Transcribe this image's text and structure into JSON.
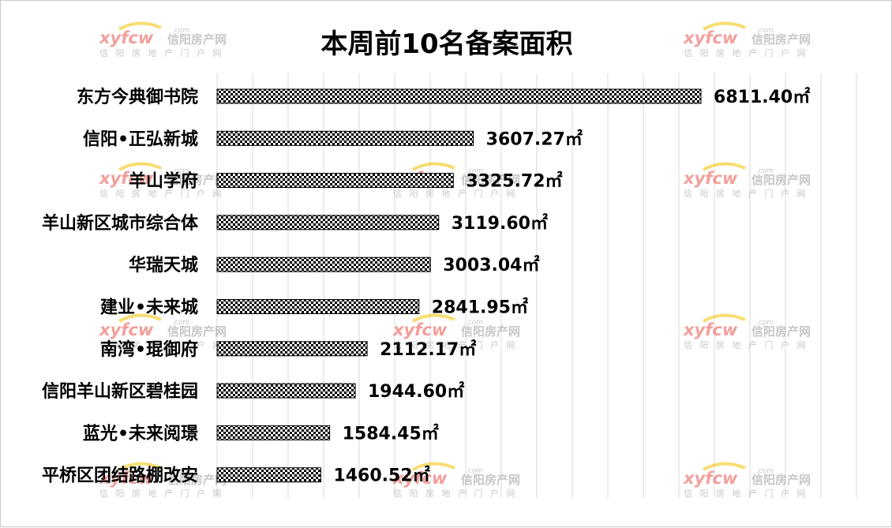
{
  "chart_data": {
    "type": "bar",
    "orientation": "horizontal",
    "title": "本周前10名备案面积",
    "categories": [
      "东方今典御书院",
      "信阳•正弘新城",
      "羊山学府",
      "羊山新区城市综合体",
      "华瑞天城",
      "建业•未来城",
      "南湾•琨御府",
      "信阳羊山新区碧桂园",
      "蓝光•未来阅璟",
      "平桥区团结路棚改安"
    ],
    "values": [
      6811.4,
      3607.27,
      3325.72,
      3119.6,
      3003.04,
      2841.95,
      2112.17,
      1944.6,
      1584.45,
      1460.52
    ],
    "value_labels": [
      "6811.40㎡",
      "3607.27㎡",
      "3325.72㎡",
      "3119.60㎡",
      "3003.04㎡",
      "2841.95㎡",
      "2112.17㎡",
      "1944.60㎡",
      "1584.45㎡",
      "1460.52㎡"
    ],
    "xlim": [
      0,
      9000
    ],
    "grid": true,
    "legend": "none",
    "bar_pattern": "checkerboard",
    "colors": {
      "bar_dark": "#000000",
      "bar_light": "#ffffff",
      "grid": "#d9d9d9",
      "text": "#000000"
    }
  },
  "watermark": {
    "logo": "xyfcw",
    "com": ".com",
    "name": "信阳房产网",
    "subtitle": "信 阳 房 地 产 门 户 网",
    "colors": {
      "logo": "#e8524a",
      "swoosh": "#f2c200",
      "name": "#9a9a9a"
    }
  }
}
